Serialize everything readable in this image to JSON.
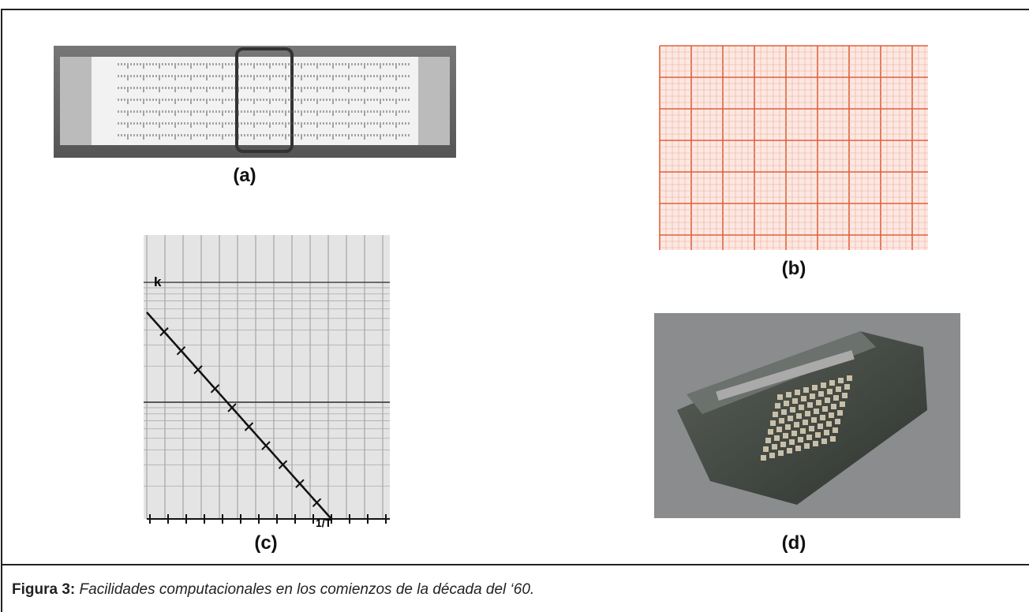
{
  "figure": {
    "panels": [
      {
        "label": "(a)"
      },
      {
        "label": "(b)"
      },
      {
        "label": "(c)"
      },
      {
        "label": "(d)"
      }
    ],
    "plot_labels": {
      "y_axis": "k",
      "x_axis": "1/T"
    }
  },
  "caption": {
    "label": "Figura 3:",
    "text": "Facilidades computacionales en los comienzos de la década del ‘60."
  }
}
